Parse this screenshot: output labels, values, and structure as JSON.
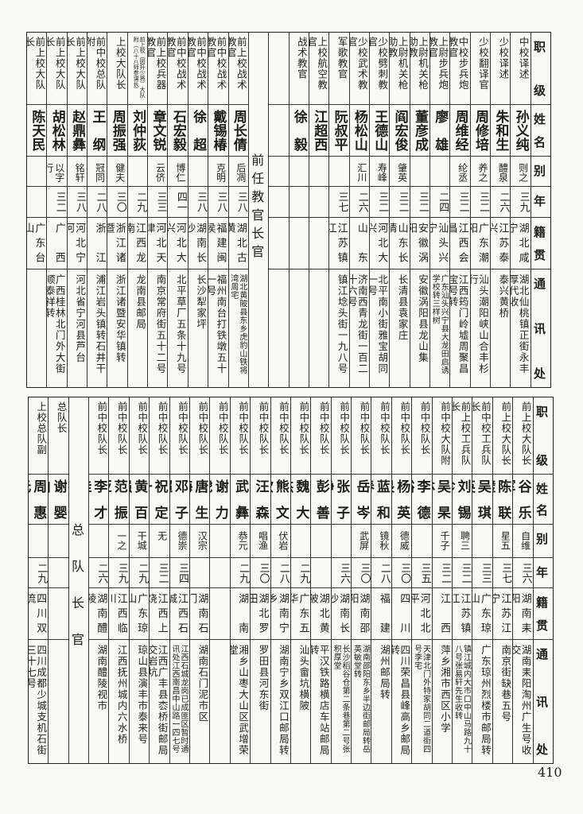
{
  "headers": [
    "职级",
    "姓名",
    "别号",
    "年龄",
    "籍贯",
    "通讯处"
  ],
  "top_table": {
    "group_a": [
      {
        "rank": "中校译述",
        "name": "孙义纯",
        "alias": "则之",
        "age": "三九",
        "native": "湖北咸宁",
        "address": "湖北仙桃镇正街永丰厚代收"
      },
      {
        "rank": "少校译述",
        "name": "朱和生",
        "alias": "醴泉",
        "age": "二六",
        "native": "江苏泰兴",
        "address": "泰兴黄桥"
      },
      {
        "rank": "少校翻译官",
        "name": "周修培",
        "alias": "养之",
        "age": "三二",
        "native": "广东潮阳",
        "address": "汕头潮阳峡山合丰杉行"
      },
      {
        "rank": "中校步兵炮教官",
        "name": "周维经",
        "alias": "纶丞",
        "age": "三二",
        "native": "江西会昌",
        "address": "江西筠门岭墟周聚昌宝号转"
      },
      {
        "rank": "上尉步兵炮教官",
        "name": "廖雄",
        "alias": "",
        "age": "二四",
        "native": "汕头兴宁",
        "address": "广东汕头兴宁县大龙田启诱学校转三样树"
      },
      {
        "rank": "上尉机关枪助教",
        "name": "董彦成",
        "alias": "",
        "age": "三二",
        "native": "安徽涡阳",
        "address": "安徽涡阳县龙山集"
      },
      {
        "rank": "上尉机关枪助教",
        "name": "阎宏俊",
        "alias": "肇英",
        "age": "三二",
        "native": "山东长清",
        "address": "长清县袁家庄"
      },
      {
        "rank": "少校劈刺教官",
        "name": "王德山",
        "alias": "寿峰",
        "age": "三二",
        "native": "河北大兴",
        "address": "北平南小街雅宝胡同一号"
      },
      {
        "rank": "少校武术教官",
        "name": "杨松山",
        "alias": "汇川",
        "age": "二六",
        "native": "山东",
        "address": "济南西青龙街一百二十六号"
      },
      {
        "rank": "军歌教官",
        "name": "阮叔平",
        "alias": "",
        "age": "三七",
        "native": "江苏镇江",
        "address": "镇江埝头街一九八号"
      },
      {
        "rank": "上校航空教官",
        "name": "江超西",
        "alias": "",
        "age": "",
        "native": "",
        "address": ""
      },
      {
        "rank": "战术教官",
        "name": "徐毅",
        "alias": "",
        "age": "",
        "native": "",
        "address": ""
      }
    ],
    "section_title": "前任教官长官",
    "group_b": [
      {
        "rank": "前上校战术教官",
        "name": "周长倩",
        "alias": "后凋",
        "age": "三八",
        "native": "湖北古黄",
        "address": "湖北黄陂县东乡虎豹山铁将湾周宅"
      },
      {
        "rank": "前中校战术教官",
        "name": "戴锡椿",
        "alias": "克明",
        "age": "三八",
        "native": "福建闽侯",
        "address": "福州南台打铁墩五十一号"
      },
      {
        "rank": "前中校战术教官",
        "name": "徐超",
        "alias": "",
        "age": "三八",
        "native": "湖南长沙",
        "address": "长沙犁家坪"
      },
      {
        "rank": "前中校战术教官",
        "name": "石宏毅",
        "alias": "博仁",
        "age": "四一",
        "native": "河北大兴",
        "address": "北平草厂五条十九号"
      },
      {
        "rank": "前上校兵器教官",
        "name": "章文锐",
        "alias": "云侪",
        "age": "三三",
        "native": "河北天津",
        "address": "南京常府街五十二号"
      },
      {
        "rank": "前上校（因升少将）大队附（八十八师参谋长）",
        "name": "刘仲荻",
        "alias": "",
        "age": "二九",
        "native": "江西龙南",
        "address": "龙南县邮局"
      },
      {
        "rank": "上校大队长",
        "name": "周振强",
        "alias": "健夫",
        "age": "三〇",
        "native": "浙江诸暨",
        "address": "浙江诸暨安华镇转"
      },
      {
        "rank": "前中校总队附",
        "name": "王纲",
        "alias": "冠同",
        "age": "二八",
        "native": "浙江",
        "address": "浦江岩头镇转石井干"
      },
      {
        "rank": "前上校大队长",
        "name": "赵鼎彝",
        "alias": "铭轩",
        "age": "三八",
        "native": "河北宁河",
        "address": "河北省宁河县芦台"
      },
      {
        "rank": "前上校大队长",
        "name": "胡松林",
        "alias": "以字行",
        "age": "三二",
        "native": "广西",
        "address": "广西桂林北门外大街顺泰祥转"
      },
      {
        "rank": "前上校大队长",
        "name": "陈天民",
        "alias": "",
        "age": "",
        "native": "广东台山",
        "address": ""
      }
    ]
  },
  "bottom_table": {
    "group_a": [
      {
        "rank": "前上校大队长",
        "name": "谷乐军",
        "alias": "自维",
        "age": "三六",
        "native": "湖南耒阳",
        "address": "湖南耒阳淘州广生号收交"
      },
      {
        "rank": "前上校大队长",
        "name": "陈联璧",
        "alias": "星五",
        "age": "三七",
        "native": "江苏江宁",
        "address": "南京街缺巷五号"
      },
      {
        "rank": "前中校工兵队长",
        "name": "吴琪英",
        "alias": "",
        "age": "三三",
        "native": "广东琼山",
        "address": "广东琼州烈楼市邮局转"
      },
      {
        "rank": "前上校工兵队长",
        "name": "刘锡珍",
        "alias": "聘三",
        "age": "三二",
        "native": "江苏镇江",
        "address": "镇江城内大市口中山马路九十八号张易轩先生收转"
      },
      {
        "rank": "前中校大队附",
        "name": "吴杲林",
        "alias": "千子",
        "age": "三二",
        "native": "江西",
        "address": "萍乡湘市西区小学"
      },
      {
        "rank": "前中校队长",
        "name": "李德裕",
        "alias": "",
        "age": "三五",
        "native": "河北北平",
        "address": "天津北门外特家胡同二道街四号李宅"
      },
      {
        "rank": "前中校队长",
        "name": "杨英畏",
        "alias": "德威",
        "age": "三〇",
        "native": "四川",
        "address": "四川荣昌县峰高乡邮局转"
      },
      {
        "rank": "前中校队长",
        "name": "蓝和春",
        "alias": "镜秋",
        "age": "二八",
        "native": "福建",
        "address": "湖州邮局转"
      },
      {
        "rank": "前中校队长",
        "name": "岳岑",
        "alias": "武屏",
        "age": "三〇",
        "native": "湖南邵阳",
        "address": "湖南邵阳东乡半边街邮局转岳英敏堂转"
      },
      {
        "rank": "前中校队长",
        "name": "张子静",
        "alias": "",
        "age": "三六",
        "native": "湖南长沙",
        "address": "长沙稻谷仓第二条巷第二号张积厚堂"
      },
      {
        "rank": "前中校队长",
        "name": "彭善",
        "alias": "",
        "age": "",
        "native": "湖北黄陂",
        "address": "平汉铁路横店车站邮局转"
      },
      {
        "rank": "前中校队长",
        "name": "魏大杰",
        "alias": "",
        "age": "二九",
        "native": "广东五华",
        "address": "汕头畲坑横陂"
      },
      {
        "rank": "前中校队长",
        "name": "熊文钦",
        "alias": "伏岩",
        "age": "二八",
        "native": "湖南宁乡",
        "address": "湖南宁乡双江口邮局转"
      },
      {
        "rank": "前中校队长",
        "name": "汪森",
        "alias": "唱渔",
        "age": "三〇",
        "native": "湖北罗田",
        "address": "罗田县河东街"
      },
      {
        "rank": "前中校队长",
        "name": "武彝",
        "alias": "恭元",
        "age": "二九",
        "native": "湖南",
        "address": "湘乡山枣大山区武增荣堂"
      },
      {
        "rank": "前中校队长",
        "name": "谢力虎",
        "alias": "",
        "age": "",
        "native": "",
        "address": ""
      },
      {
        "rank": "前中校队长",
        "name": "唐生海",
        "alias": "汉宗",
        "age": "",
        "native": "湖南石门",
        "address": "湖南石门泥市区"
      },
      {
        "rank": "前中校队长",
        "name": "邓子超",
        "alias": "德崇",
        "age": "三四",
        "native": "江西石城",
        "address": "江西石城龙岗已成匪区暂时通讯处江西南昌中山路一四七号"
      },
      {
        "rank": "前中校队长",
        "name": "祝定一",
        "alias": "无",
        "age": "三二",
        "native": "江西上饶",
        "address": "江西广丰县枩桥街邮局交岩坑"
      },
      {
        "rank": "前中校队长",
        "name": "黄百强",
        "alias": "干城",
        "age": "二九",
        "native": "广东琼山",
        "address": "琼山县演丰市泰来号"
      },
      {
        "rank": "前中校队长",
        "name": "范振亚",
        "alias": "一之",
        "age": "三九",
        "native": "江西临川",
        "address": "江西抚州城内六水桥"
      },
      {
        "rank": "前中校队长",
        "name": "李才桂",
        "alias": "",
        "age": "二六",
        "native": "湖南醴陵",
        "address": "湖南醴陵视市"
      }
    ],
    "section_title": "总队长官",
    "group_b": [
      {
        "rank": "总队长",
        "name": "谢婴白",
        "alias": "",
        "age": "",
        "native": "",
        "address": ""
      },
      {
        "rank": "上校总队副",
        "name": "周惠元",
        "alias": "",
        "age": "二九",
        "native": "四川双流",
        "address": "四川成都少城支机石街三十七号"
      }
    ]
  },
  "page_number": "410"
}
